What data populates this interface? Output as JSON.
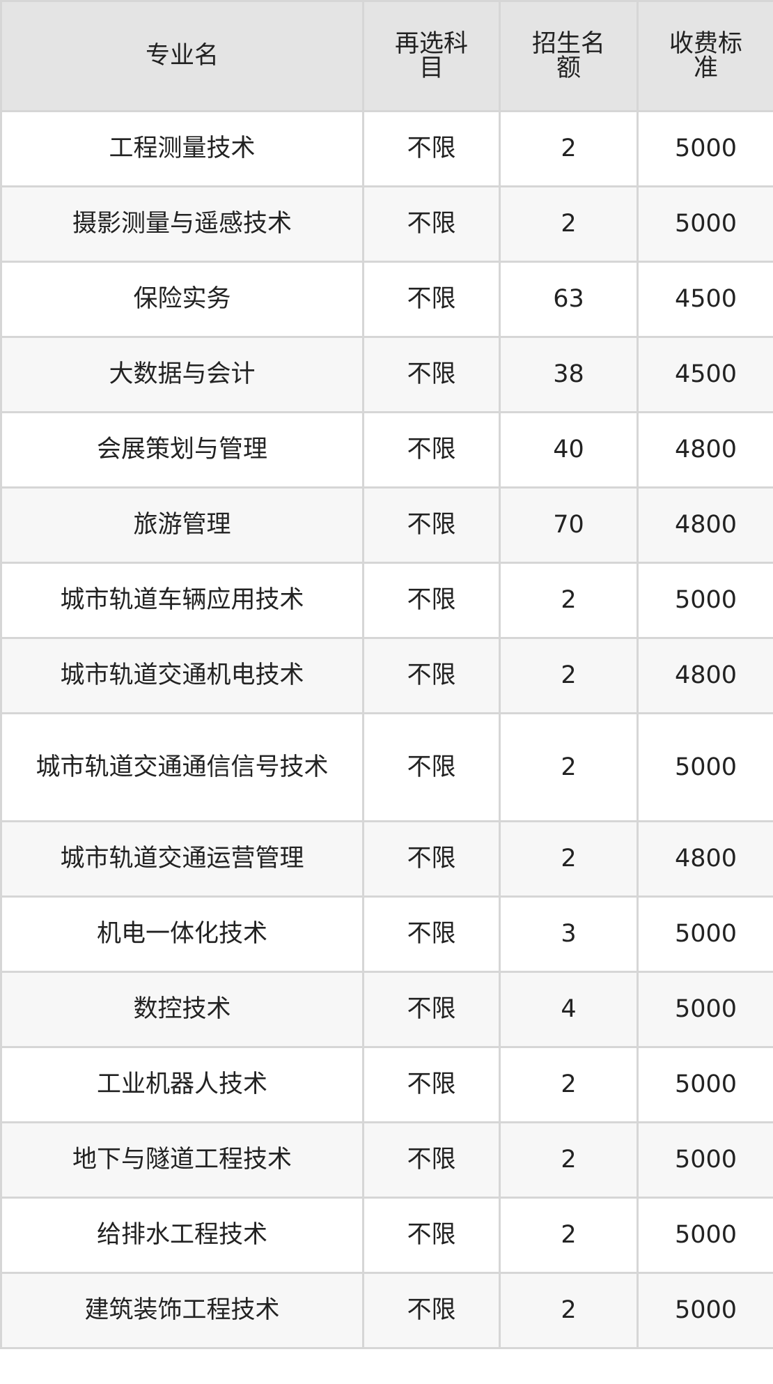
{
  "table": {
    "headers": [
      "专业名",
      "再选科目",
      "招生名额",
      "收费标准"
    ],
    "rows": [
      [
        "工程测量技术",
        "不限",
        "2",
        "5000"
      ],
      [
        "摄影测量与遥感技术",
        "不限",
        "2",
        "5000"
      ],
      [
        "保险实务",
        "不限",
        "63",
        "4500"
      ],
      [
        "大数据与会计",
        "不限",
        "38",
        "4500"
      ],
      [
        "会展策划与管理",
        "不限",
        "40",
        "4800"
      ],
      [
        "旅游管理",
        "不限",
        "70",
        "4800"
      ],
      [
        "城市轨道车辆应用技术",
        "不限",
        "2",
        "5000"
      ],
      [
        "城市轨道交通机电技术",
        "不限",
        "2",
        "4800"
      ],
      [
        "城市轨道交通通信信号技术",
        "不限",
        "2",
        "5000"
      ],
      [
        "城市轨道交通运营管理",
        "不限",
        "2",
        "4800"
      ],
      [
        "机电一体化技术",
        "不限",
        "3",
        "5000"
      ],
      [
        "数控技术",
        "不限",
        "4",
        "5000"
      ],
      [
        "工业机器人技术",
        "不限",
        "2",
        "5000"
      ],
      [
        "地下与隧道工程技术",
        "不限",
        "2",
        "5000"
      ],
      [
        "给排水工程技术",
        "不限",
        "2",
        "5000"
      ],
      [
        "建筑装饰工程技术",
        "不限",
        "2",
        "5000"
      ]
    ]
  }
}
